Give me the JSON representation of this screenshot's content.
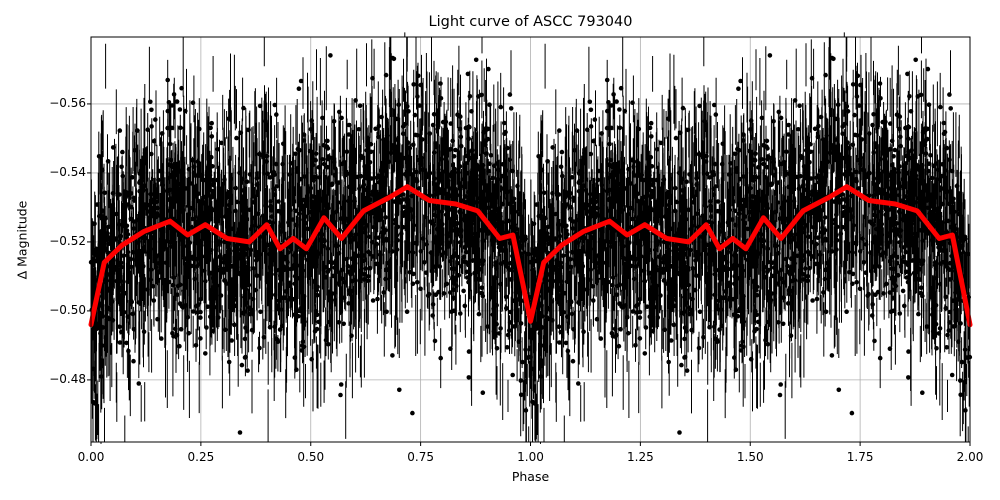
{
  "chart_data": {
    "type": "scatter",
    "title": "Light curve of ASCC 793040",
    "xlabel": "Phase",
    "ylabel": "Δ Magnitude",
    "xlim": [
      0.0,
      2.0
    ],
    "ylim": [
      -0.462,
      -0.5794
    ],
    "y_inverted": true,
    "grid": true,
    "x_ticks": [
      "0.00",
      "0.25",
      "0.50",
      "0.75",
      "1.00",
      "1.25",
      "1.50",
      "1.75",
      "2.00"
    ],
    "y_ticks": [
      "−0.56",
      "−0.54",
      "−0.52",
      "−0.50",
      "−0.48"
    ],
    "y_tick_values": [
      -0.56,
      -0.54,
      -0.52,
      -0.5,
      -0.48
    ],
    "series": [
      {
        "name": "observations",
        "type": "errorbar-scatter",
        "color": "#000000",
        "description": "dense black points with error bars spanning roughly -0.58 to -0.46, phase-folded and repeated over 0-2"
      },
      {
        "name": "binned mean",
        "type": "line",
        "color": "#ff0000",
        "x": [
          0.0,
          0.03,
          0.07,
          0.12,
          0.18,
          0.22,
          0.26,
          0.31,
          0.36,
          0.4,
          0.43,
          0.46,
          0.49,
          0.53,
          0.57,
          0.62,
          0.68,
          0.72,
          0.77,
          0.83,
          0.88,
          0.93,
          0.96,
          1.0,
          1.03,
          1.07,
          1.12,
          1.18,
          1.22,
          1.26,
          1.31,
          1.36,
          1.4,
          1.43,
          1.46,
          1.49,
          1.53,
          1.57,
          1.62,
          1.68,
          1.72,
          1.77,
          1.83,
          1.88,
          1.93,
          1.96,
          2.0
        ],
        "y": [
          -0.496,
          -0.514,
          -0.519,
          -0.523,
          -0.526,
          -0.522,
          -0.525,
          -0.521,
          -0.52,
          -0.525,
          -0.518,
          -0.521,
          -0.518,
          -0.527,
          -0.521,
          -0.529,
          -0.533,
          -0.536,
          -0.532,
          -0.531,
          -0.529,
          -0.521,
          -0.522,
          -0.497,
          -0.514,
          -0.519,
          -0.523,
          -0.526,
          -0.522,
          -0.525,
          -0.521,
          -0.52,
          -0.525,
          -0.518,
          -0.521,
          -0.518,
          -0.527,
          -0.521,
          -0.529,
          -0.533,
          -0.536,
          -0.532,
          -0.531,
          -0.529,
          -0.521,
          -0.522,
          -0.496
        ]
      }
    ]
  }
}
